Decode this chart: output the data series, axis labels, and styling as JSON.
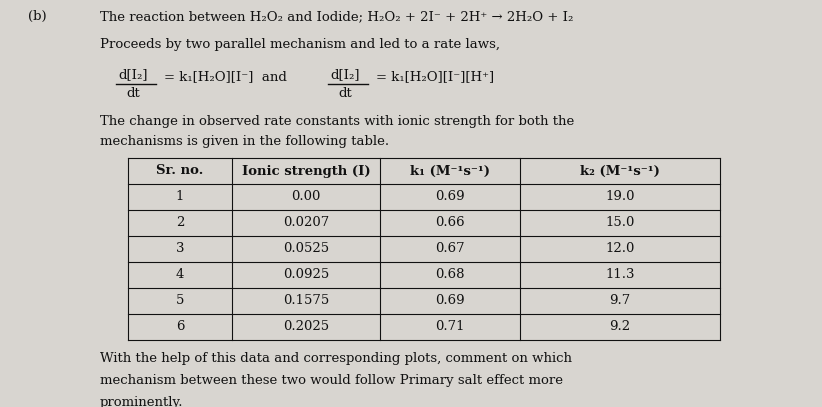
{
  "label_b": "(b)",
  "line1": "The reaction between H₂O₂ and Iodide; H₂O₂ + 2I⁻ + 2H⁺ → 2H₂O + I₂",
  "line2": "Proceeds by two parallel mechanism and led to a rate laws,",
  "line3": "The change in observed rate constants with ionic strength for both the",
  "line4": "mechanisms is given in the following table.",
  "col_headers": [
    "Sr. no.",
    "Ionic strength (I)",
    "k₁ (M⁻¹s⁻¹)",
    "k₂ (M⁻¹s⁻¹)"
  ],
  "sr_no": [
    "1",
    "2",
    "3",
    "4",
    "5",
    "6"
  ],
  "ionic_strength": [
    "0.00",
    "0.0207",
    "0.0525",
    "0.0925",
    "0.1575",
    "0.2025"
  ],
  "k1": [
    "0.69",
    "0.66",
    "0.67",
    "0.68",
    "0.69",
    "0.71"
  ],
  "k2": [
    "19.0",
    "15.0",
    "12.0",
    "11.3",
    "9.7",
    "9.2"
  ],
  "line5": "With the help of this data and corresponding plots, comment on which",
  "line6": "mechanism between these two would follow Primary salt effect more",
  "line7": "prominently.",
  "bg_color": "#d8d5d0",
  "text_color": "#111111",
  "table_border_color": "#111111",
  "font_size_text": 9.5,
  "font_size_table_header": 9.5,
  "font_size_table_data": 9.5,
  "font_size_eq": 9.5
}
